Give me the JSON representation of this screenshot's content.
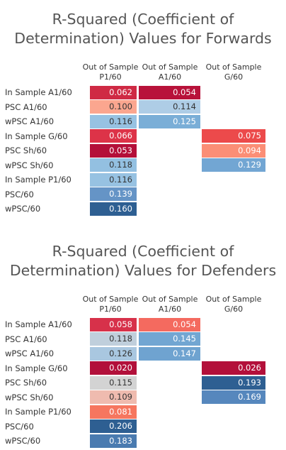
{
  "chart_data": [
    {
      "type": "heatmap",
      "title": "R-Squared (Coefficient of\nDetermination) Values for Forwards",
      "columns": [
        "Out of Sample\nP1/60",
        "Out of Sample\nA1/60",
        "Out of Sample\nG/60"
      ],
      "rows": [
        {
          "label": "In Sample A1/60",
          "values": [
            0.062,
            0.054,
            null
          ],
          "colors": [
            "#cf2a44",
            "#b8123a",
            null
          ]
        },
        {
          "label": "PSC A1/60",
          "values": [
            0.1,
            0.114,
            null
          ],
          "colors": [
            "#fba68f",
            "#aecde6",
            null
          ]
        },
        {
          "label": "wPSC A1/60",
          "values": [
            0.116,
            0.125,
            null
          ],
          "colors": [
            "#97c2e2",
            "#7aaed7",
            null
          ]
        },
        {
          "label": "In Sample G/60",
          "values": [
            0.066,
            null,
            0.075
          ],
          "colors": [
            "#dd3348",
            null,
            "#ec4a4b"
          ]
        },
        {
          "label": "PSC Sh/60",
          "values": [
            0.053,
            null,
            0.094
          ],
          "colors": [
            "#b40f39",
            null,
            "#fb8e76"
          ]
        },
        {
          "label": "wPSC Sh/60",
          "values": [
            0.118,
            null,
            0.129
          ],
          "colors": [
            "#93c0e1",
            null,
            "#72a6d3"
          ]
        },
        {
          "label": "In Sample P1/60",
          "values": [
            0.116,
            null,
            null
          ],
          "colors": [
            "#97c2e2",
            null,
            null
          ]
        },
        {
          "label": "PSC/60",
          "values": [
            0.139,
            null,
            null
          ],
          "colors": [
            "#6594c6",
            null,
            null
          ]
        },
        {
          "label": "wPSC/60",
          "values": [
            0.16,
            null,
            null
          ],
          "colors": [
            "#2e5f92",
            null,
            null
          ]
        }
      ]
    },
    {
      "type": "heatmap",
      "title": "R-Squared (Coefficient of\nDetermination) Values for Defenders",
      "columns": [
        "Out of Sample\nP1/60",
        "Out of Sample\nA1/60",
        "Out of Sample\nG/60"
      ],
      "rows": [
        {
          "label": "In Sample A1/60",
          "values": [
            0.058,
            0.054,
            null
          ],
          "colors": [
            "#d7314a",
            "#f46a5f",
            null
          ]
        },
        {
          "label": "PSC A1/60",
          "values": [
            0.118,
            0.145,
            null
          ],
          "colors": [
            "#c0cfdc",
            "#72a6d2",
            null
          ]
        },
        {
          "label": "wPSC A1/60",
          "values": [
            0.126,
            0.147,
            null
          ],
          "colors": [
            "#a9c7e0",
            "#6fa3d0",
            null
          ]
        },
        {
          "label": "In Sample G/60",
          "values": [
            0.02,
            null,
            0.026
          ],
          "colors": [
            "#b2103a",
            null,
            "#b3103a"
          ]
        },
        {
          "label": "PSC Sh/60",
          "values": [
            0.115,
            null,
            0.193
          ],
          "colors": [
            "#d3d3d3",
            null,
            "#2e5f92"
          ]
        },
        {
          "label": "wPSC Sh/60",
          "values": [
            0.109,
            null,
            0.169
          ],
          "colors": [
            "#efbbaf",
            null,
            "#5687bd"
          ]
        },
        {
          "label": "In Sample P1/60",
          "values": [
            0.081,
            null,
            null
          ],
          "colors": [
            "#f6765f",
            null,
            null
          ]
        },
        {
          "label": "PSC/60",
          "values": [
            0.206,
            null,
            null
          ],
          "colors": [
            "#2e5f92",
            null,
            null
          ]
        },
        {
          "label": "wPSC/60",
          "values": [
            0.183,
            null,
            null
          ],
          "colors": [
            "#4a7bb0",
            null,
            null
          ]
        }
      ]
    }
  ]
}
